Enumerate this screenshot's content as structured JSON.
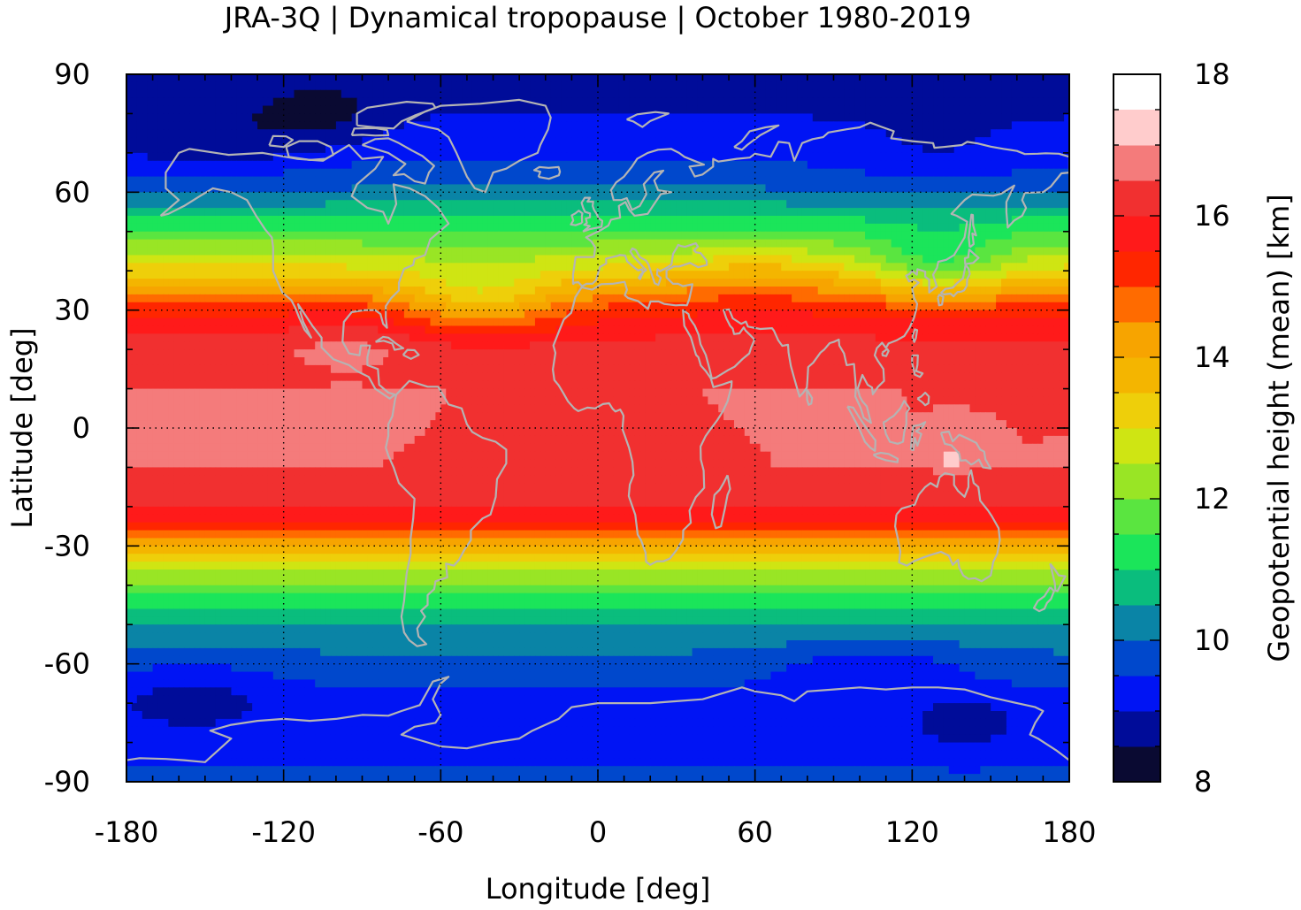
{
  "title": "JRA-3Q | Dynamical tropopause | October 1980-2019",
  "chart_data": {
    "type": "heatmap",
    "title": "JRA-3Q | Dynamical tropopause | October 1980-2019",
    "xlabel": "Longitude [deg]",
    "ylabel": "Latitude [deg]",
    "xlim": [
      -180,
      180
    ],
    "ylim": [
      -90,
      90
    ],
    "xticks": [
      "-180",
      "-120",
      "-60",
      "0",
      "60",
      "120",
      "180"
    ],
    "yticks": [
      "90",
      "60",
      "30",
      "0",
      "-30",
      "-60",
      "-90"
    ],
    "grid": true,
    "colorbar": {
      "label": "Geopotential height (mean) [km]",
      "min": 8,
      "max": 18,
      "step": 0.5,
      "ticks": [
        "18",
        "16",
        "14",
        "12",
        "10",
        "8"
      ],
      "colors": [
        "#0a0a32",
        "#000c99",
        "#0014f4",
        "#0048cc",
        "#0a84a6",
        "#0abd7d",
        "#1be55a",
        "#5ae540",
        "#99e525",
        "#cfe513",
        "#eecf0a",
        "#f4b500",
        "#f7a400",
        "#ff6b00",
        "#ff2600",
        "#ff1a1a",
        "#f13030",
        "#f47b7b",
        "#ffcccc"
      ]
    },
    "zonal_mean_height_km": [
      {
        "lat": 90,
        "value": 8.8
      },
      {
        "lat": 80,
        "value": 9.0
      },
      {
        "lat": 70,
        "value": 9.4
      },
      {
        "lat": 60,
        "value": 10.1
      },
      {
        "lat": 50,
        "value": 11.5
      },
      {
        "lat": 40,
        "value": 13.2
      },
      {
        "lat": 30,
        "value": 15.3
      },
      {
        "lat": 20,
        "value": 16.3
      },
      {
        "lat": 10,
        "value": 16.5
      },
      {
        "lat": 0,
        "value": 16.5
      },
      {
        "lat": -10,
        "value": 16.5
      },
      {
        "lat": -20,
        "value": 16.2
      },
      {
        "lat": -30,
        "value": 14.0
      },
      {
        "lat": -40,
        "value": 11.8
      },
      {
        "lat": -50,
        "value": 10.5
      },
      {
        "lat": -60,
        "value": 9.8
      },
      {
        "lat": -70,
        "value": 9.3
      },
      {
        "lat": -80,
        "value": 9.3
      },
      {
        "lat": -90,
        "value": 9.6
      }
    ],
    "overlay": "coastlines",
    "coastline_color": "#b4b4b4"
  }
}
